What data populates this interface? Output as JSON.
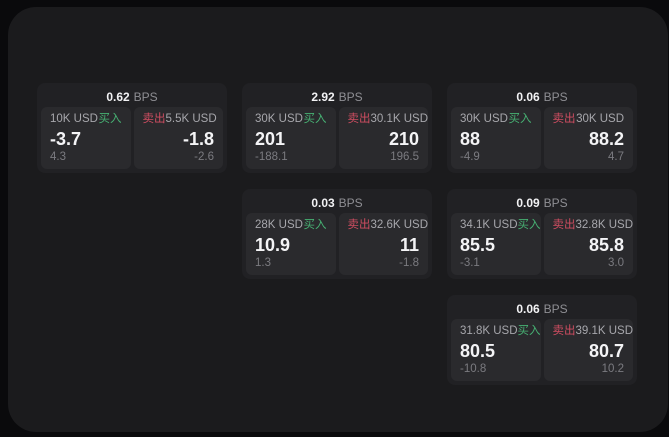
{
  "page": {
    "background_color": "#0a0a0c",
    "panel_color": "#1b1b1d"
  },
  "colors": {
    "card_bg": "#212124",
    "tile_bg": "#2a2a2d",
    "buy_green": "#47b173",
    "sell_red": "#cf4d61",
    "value_white": "#f4f4f6",
    "size_label_gray": "#a7a7ac",
    "delta_gray": "#7b7b80",
    "unit_gray": "#8f8f94"
  },
  "labels": {
    "bps_unit": "BPS",
    "buy": "买入",
    "sell": "卖出"
  },
  "cards": [
    {
      "bps": "0.62",
      "buy": {
        "size": "10K USD",
        "price": "-3.7",
        "delta": "4.3"
      },
      "sell": {
        "size": "5.5K USD",
        "price": "-1.8",
        "delta": "-2.6"
      }
    },
    {
      "bps": "2.92",
      "buy": {
        "size": "30K USD",
        "price": "201",
        "delta": "-188.1"
      },
      "sell": {
        "size": "30.1K USD",
        "price": "210",
        "delta": "196.5"
      }
    },
    {
      "bps": "0.06",
      "buy": {
        "size": "30K USD",
        "price": "88",
        "delta": "-4.9"
      },
      "sell": {
        "size": "30K USD",
        "price": "88.2",
        "delta": "4.7"
      }
    },
    {
      "bps": "0.03",
      "buy": {
        "size": "28K USD",
        "price": "10.9",
        "delta": "1.3"
      },
      "sell": {
        "size": "32.6K USD",
        "price": "11",
        "delta": "-1.8"
      }
    },
    {
      "bps": "0.09",
      "buy": {
        "size": "34.1K USD",
        "price": "85.5",
        "delta": "-3.1"
      },
      "sell": {
        "size": "32.8K USD",
        "price": "85.8",
        "delta": "3.0"
      }
    },
    {
      "bps": "0.06",
      "buy": {
        "size": "31.8K USD",
        "price": "80.5",
        "delta": "-10.8"
      },
      "sell": {
        "size": "39.1K USD",
        "price": "80.7",
        "delta": "10.2"
      }
    }
  ]
}
